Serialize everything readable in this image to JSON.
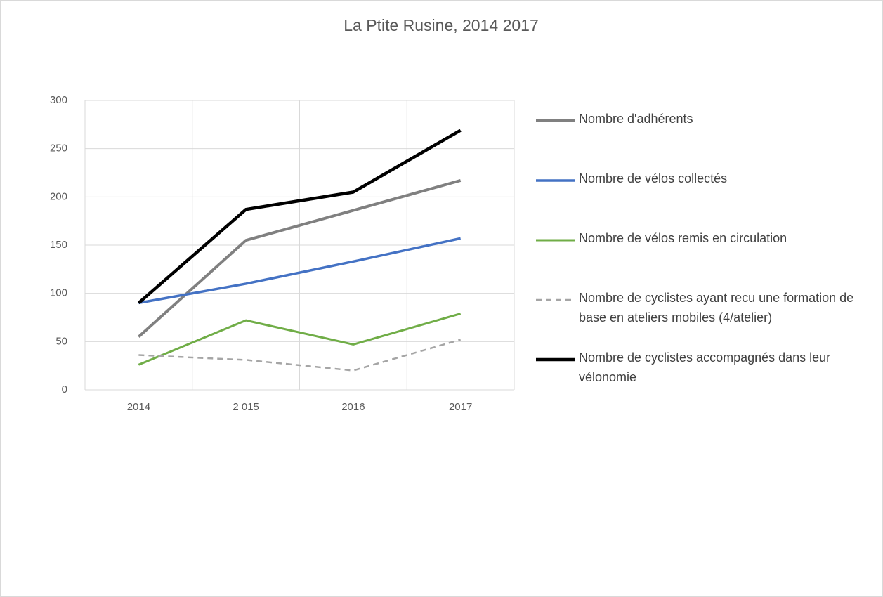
{
  "chart_data": {
    "type": "line",
    "title": "La Ptite Rusine, 2014 2017",
    "categories": [
      "2014",
      "2 015",
      "2016",
      "2017"
    ],
    "series": [
      {
        "name": "Nombre d'adhérents",
        "color": "#808080",
        "values": [
          55,
          155,
          186,
          217
        ]
      },
      {
        "name": "Nombre de vélos collectés",
        "color": "#4472c4",
        "values": [
          90,
          110,
          133,
          157
        ]
      },
      {
        "name": "Nombre de vélos remis en circulation",
        "color": "#70ad47",
        "values": [
          26,
          72,
          47,
          79
        ]
      },
      {
        "name": "Nombre de cyclistes ayant recu une formation de base en ateliers mobiles (4/atelier)",
        "color": "#a5a5a5",
        "dashed": true,
        "values": [
          36,
          31,
          20,
          52
        ]
      },
      {
        "name": "Nombre de cyclistes accompagnés dans leur vélonomie",
        "color": "#000000",
        "values": [
          90,
          187,
          205,
          269
        ]
      }
    ],
    "ylim": [
      0,
      300
    ],
    "yticks": [
      0,
      50,
      100,
      150,
      200,
      250,
      300
    ],
    "grid": true,
    "legend": "right"
  }
}
